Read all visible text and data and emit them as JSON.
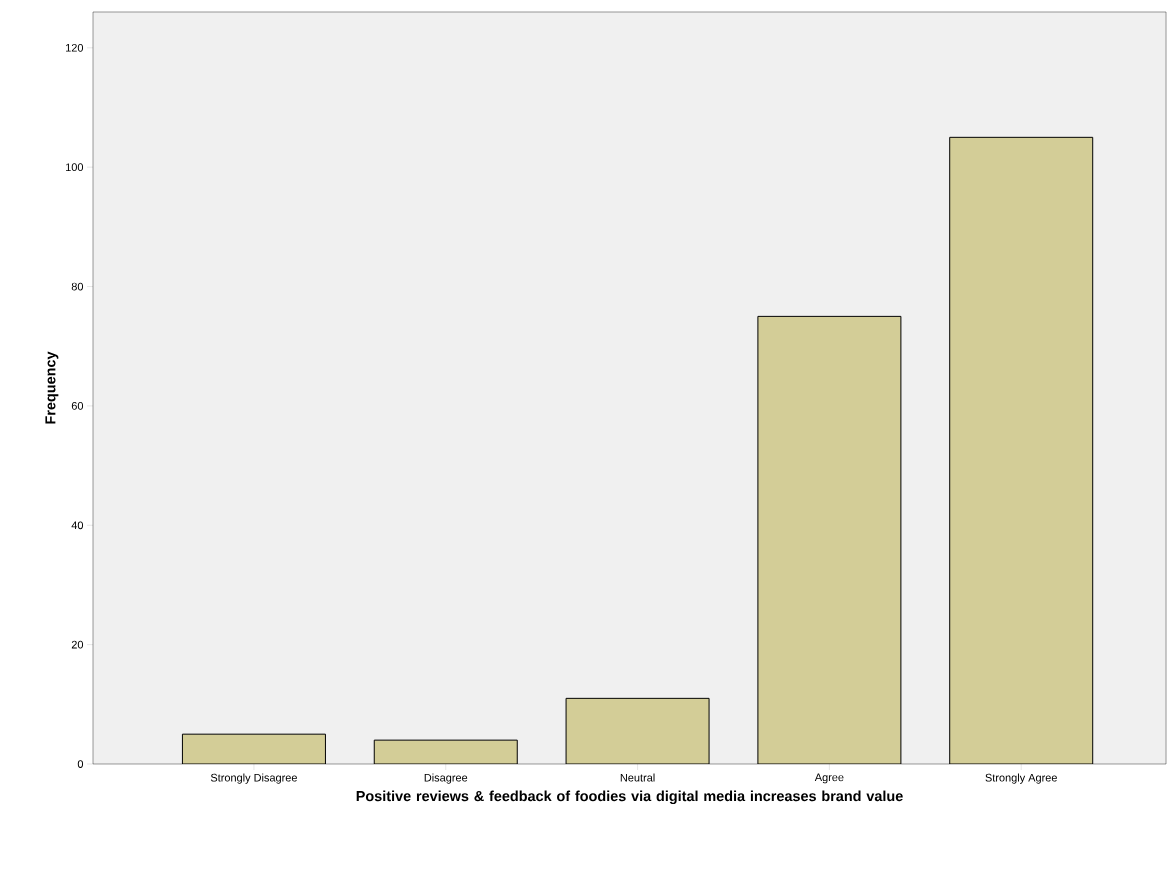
{
  "chart_data": {
    "type": "bar",
    "xlabel": "Positive reviews & feedback of foodies via digital media increases brand value",
    "ylabel": "Frequency",
    "categories": [
      "Strongly Disagree",
      "Disagree",
      "Neutral",
      "Agree",
      "Strongly Agree"
    ],
    "values": [
      5,
      4,
      11,
      75,
      105
    ],
    "color": "#d3cd97",
    "ylim": [
      0,
      126
    ],
    "yticks": [
      0,
      20,
      40,
      60,
      80,
      100,
      120
    ],
    "grid": false
  }
}
